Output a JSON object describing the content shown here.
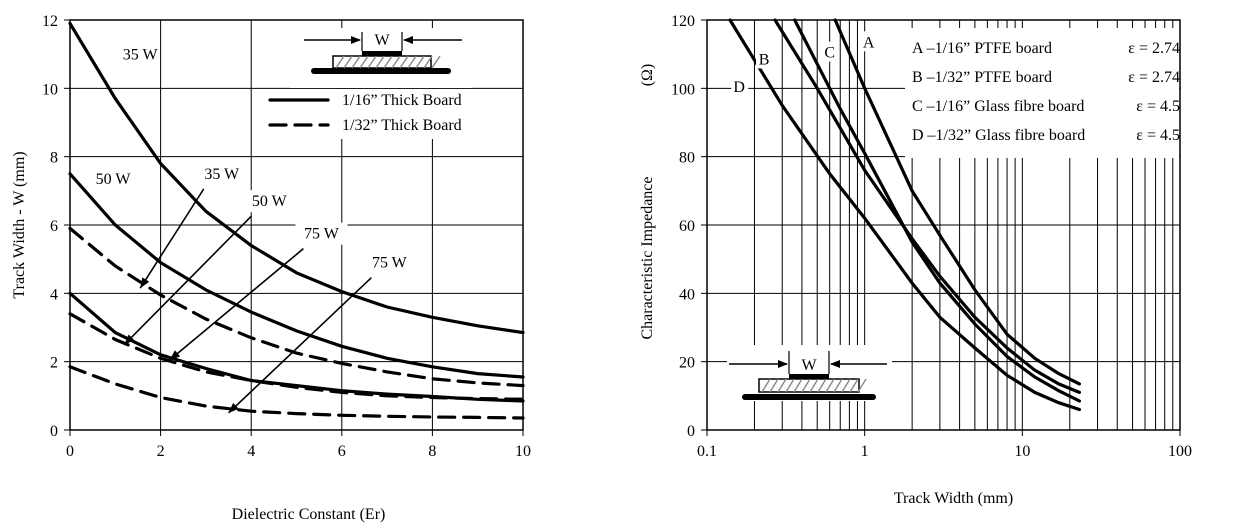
{
  "chart_data": [
    {
      "type": "line",
      "xlabel": "Dielectric Constant (Er)",
      "ylabel": "Track Width - W (mm)",
      "xlim": [
        0,
        10
      ],
      "ylim": [
        0,
        12
      ],
      "xticks": [
        "0",
        "2",
        "4",
        "6",
        "8",
        "10"
      ],
      "yticks": [
        "0",
        "2",
        "4",
        "6",
        "8",
        "10",
        "12"
      ],
      "grid": true,
      "legend": {
        "position": "top-right",
        "entries": [
          {
            "label": "1/16” Thick Board",
            "style": "solid"
          },
          {
            "label": "1/32” Thick Board",
            "style": "dashed"
          }
        ]
      },
      "diagram_label": "W",
      "series": [
        {
          "name": "35 W",
          "board": "1/16”",
          "style": "solid",
          "x": [
            0,
            1,
            2,
            3,
            4,
            5,
            6,
            7,
            8,
            9,
            10
          ],
          "y": [
            11.9,
            9.7,
            7.8,
            6.4,
            5.4,
            4.6,
            4.05,
            3.6,
            3.3,
            3.05,
            2.85
          ]
        },
        {
          "name": "50 W",
          "board": "1/16”",
          "style": "solid",
          "x": [
            0,
            1,
            2,
            3,
            4,
            5,
            6,
            7,
            8,
            9,
            10
          ],
          "y": [
            7.5,
            6.0,
            4.9,
            4.1,
            3.45,
            2.9,
            2.45,
            2.1,
            1.85,
            1.65,
            1.55
          ]
        },
        {
          "name": "50 W",
          "board": "1/32”",
          "style": "dashed",
          "x": [
            0,
            1,
            2,
            3,
            4,
            5,
            6,
            7,
            8,
            9,
            10
          ],
          "y": [
            5.9,
            4.8,
            3.95,
            3.25,
            2.7,
            2.25,
            1.95,
            1.7,
            1.5,
            1.38,
            1.3
          ]
        },
        {
          "name": "75 W",
          "board": "1/16”",
          "style": "solid",
          "x": [
            0,
            1,
            2,
            3,
            4,
            5,
            6,
            7,
            8,
            9,
            10
          ],
          "y": [
            4.0,
            2.85,
            2.2,
            1.8,
            1.45,
            1.3,
            1.15,
            1.05,
            0.98,
            0.9,
            0.85
          ]
        },
        {
          "name": "35 W",
          "board": "1/32”",
          "style": "dashed",
          "x": [
            0,
            1,
            2,
            3,
            4,
            5,
            6,
            7,
            8,
            9,
            10
          ],
          "y": [
            3.4,
            2.65,
            2.1,
            1.7,
            1.45,
            1.25,
            1.1,
            1.0,
            0.95,
            0.92,
            0.9
          ]
        },
        {
          "name": "75 W",
          "board": "1/32”",
          "style": "dashed",
          "x": [
            0,
            1,
            2,
            3,
            4,
            5,
            6,
            7,
            8,
            9,
            10
          ],
          "y": [
            1.85,
            1.35,
            0.95,
            0.7,
            0.55,
            0.48,
            0.43,
            0.4,
            0.38,
            0.37,
            0.35
          ]
        }
      ],
      "annotations": [
        {
          "text": "35 W",
          "x": 1.55,
          "y": 10.85
        },
        {
          "text": "50 W",
          "x": 0.95,
          "y": 7.2
        },
        {
          "text": "35 W",
          "x": 3.35,
          "y": 7.35,
          "arrow_to": [
            1.55,
            4.15
          ]
        },
        {
          "text": "50 W",
          "x": 4.4,
          "y": 6.55,
          "arrow_to": [
            1.2,
            2.5
          ]
        },
        {
          "text": "75 W",
          "x": 5.55,
          "y": 5.6,
          "arrow_to": [
            2.2,
            2.05
          ]
        },
        {
          "text": "75 W",
          "x": 7.05,
          "y": 4.75,
          "arrow_to": [
            3.5,
            0.5
          ]
        }
      ]
    },
    {
      "type": "line",
      "xlabel": "Track Width (mm)",
      "ylabel": "Characteristic Impedance",
      "ylabel_unit": "(Ω)",
      "xscale": "log",
      "xlim": [
        0.1,
        100
      ],
      "ylim": [
        0,
        120
      ],
      "xticks": [
        "0.1",
        "1",
        "10",
        "100"
      ],
      "yticks": [
        "0",
        "20",
        "40",
        "60",
        "80",
        "100",
        "120"
      ],
      "grid": true,
      "diagram_label": "W",
      "legend": {
        "position": "top-right",
        "entries": [
          {
            "key": "A",
            "label": "A –1/16” PTFE board",
            "epsilon": "ε = 2.74"
          },
          {
            "key": "B",
            "label": "B –1/32” PTFE board",
            "epsilon": "ε = 2.74"
          },
          {
            "key": "C",
            "label": "C –1/16” Glass fibre board",
            "epsilon": "ε = 4.5"
          },
          {
            "key": "D",
            "label": "D –1/32” Glass fibre board",
            "epsilon": "ε = 4.5"
          }
        ]
      },
      "series": [
        {
          "name": "A",
          "x": [
            0.65,
            1,
            2,
            3,
            5,
            8,
            12,
            17,
            23
          ],
          "y": [
            120,
            100,
            70,
            57,
            41,
            28,
            21,
            16.5,
            13.5
          ]
        },
        {
          "name": "B",
          "x": [
            0.27,
            0.5,
            1,
            2,
            3,
            5,
            8,
            12,
            17,
            23
          ],
          "y": [
            120,
            100,
            76,
            56,
            45,
            33,
            24,
            17.5,
            13.5,
            11
          ]
        },
        {
          "name": "C",
          "x": [
            0.36,
            0.7,
            1,
            2,
            3,
            5,
            8,
            12,
            17,
            23
          ],
          "y": [
            120,
            94,
            81,
            55,
            43,
            31,
            21.5,
            15.5,
            11.5,
            8.5
          ]
        },
        {
          "name": "D",
          "x": [
            0.14,
            0.3,
            0.6,
            1,
            2,
            3,
            5,
            8,
            12,
            17,
            23
          ],
          "y": [
            120,
            95,
            75,
            62,
            43,
            33,
            24,
            16,
            11,
            8,
            6
          ]
        }
      ]
    }
  ]
}
